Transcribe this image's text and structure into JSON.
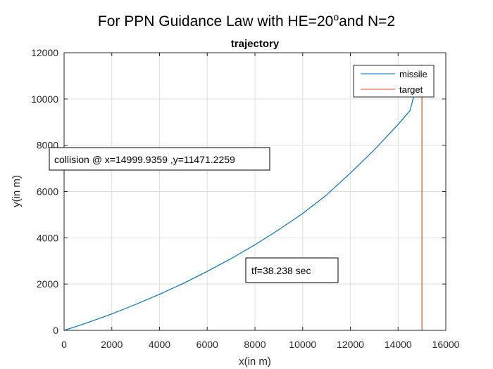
{
  "chart_data": {
    "type": "line",
    "suptitle": {
      "main": "For PPN Guidance Law with HE=20",
      "superscript": "o",
      "suffix": "and N=2"
    },
    "title": "trajectory",
    "xlabel": "x(in m)",
    "ylabel": "y(in m)",
    "xlim": [
      0,
      16000
    ],
    "ylim": [
      0,
      12000
    ],
    "xticks": [
      0,
      2000,
      4000,
      6000,
      8000,
      10000,
      12000,
      14000,
      16000
    ],
    "yticks": [
      0,
      2000,
      4000,
      6000,
      8000,
      10000,
      12000
    ],
    "grid": true,
    "legend_position": "top-right",
    "series": [
      {
        "name": "missile",
        "color": "#0072BD",
        "x": [
          0,
          500,
          1000,
          2000,
          3000,
          4000,
          5000,
          6000,
          7000,
          8000,
          9000,
          10000,
          11000,
          12000,
          13000,
          14000,
          14500,
          14999.9359
        ],
        "y": [
          0,
          165,
          340,
          710,
          1120,
          1560,
          2030,
          2550,
          3100,
          3700,
          4350,
          5050,
          5850,
          6800,
          7800,
          8900,
          9500,
          11471.2259
        ]
      },
      {
        "name": "target",
        "color": "#D95319",
        "x": [
          15000,
          15000
        ],
        "y": [
          0,
          11471.2259
        ]
      }
    ],
    "annotations": [
      {
        "text": "collision @ x=14999.9359 ,y=11471.2259"
      },
      {
        "text": "tf=38.238 sec"
      }
    ]
  }
}
